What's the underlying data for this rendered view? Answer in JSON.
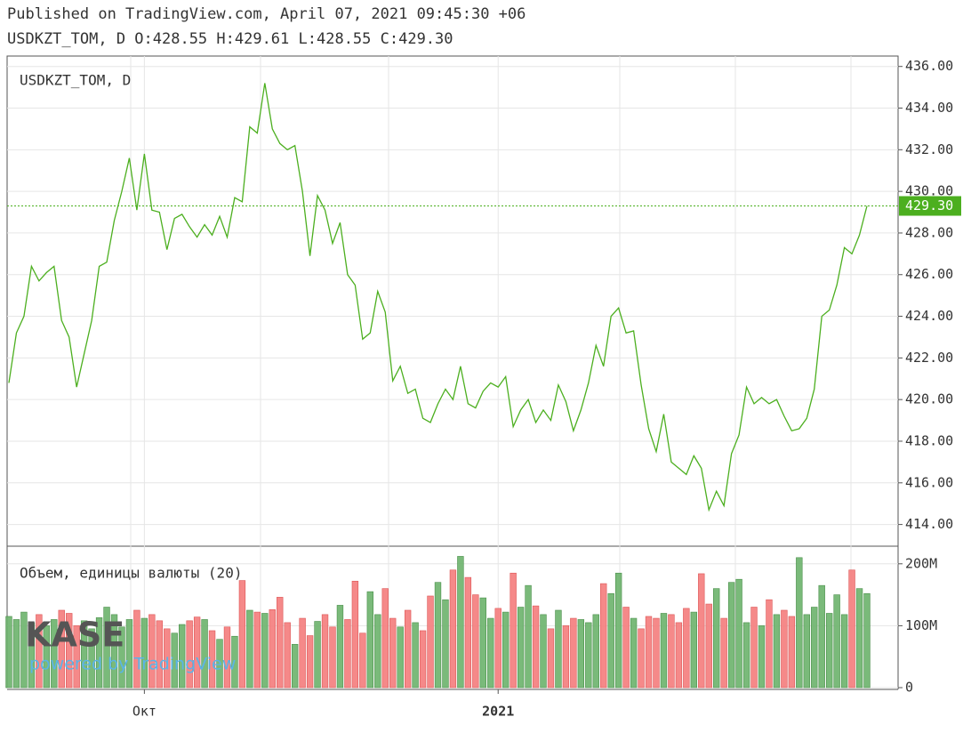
{
  "header": {
    "published": "Published on TradingView.com, April 07, 2021 09:45:30 +06",
    "ohlc": "USDKZT_TOM, D O:428.55 H:429.61 L:428.55 C:429.30"
  },
  "logo": {
    "name": "KASE",
    "tagline": "powered by TradingView"
  },
  "chart_data": {
    "type": "line",
    "categories": [
      null,
      null,
      null,
      null,
      null,
      null,
      null,
      null,
      null,
      null,
      null,
      null,
      null,
      null,
      null,
      null,
      null,
      null,
      "Окт",
      null,
      null,
      null,
      null,
      null,
      null,
      null,
      null,
      null,
      null,
      null,
      null,
      null,
      null,
      null,
      null,
      null,
      null,
      null,
      null,
      null,
      null,
      null,
      null,
      null,
      null,
      null,
      null,
      null,
      null,
      null,
      null,
      null,
      null,
      null,
      null,
      null,
      null,
      null,
      null,
      null,
      null,
      null,
      null,
      null,
      null,
      "2021",
      null,
      null,
      null,
      null,
      null,
      null,
      null,
      null,
      null,
      null,
      null,
      null,
      null,
      null,
      null,
      null,
      null,
      null,
      null,
      null,
      null,
      null,
      null,
      null,
      null,
      null,
      null,
      null,
      null,
      null,
      null,
      null,
      null,
      null,
      null,
      null,
      null,
      null,
      null,
      null,
      null,
      null,
      null,
      null,
      null,
      null,
      null,
      null,
      null
    ],
    "series": [
      {
        "name": "USDKZT_TOM, D",
        "color": "#4caf1f",
        "values": [
          420.8,
          423.2,
          424.0,
          426.4,
          425.7,
          426.1,
          426.4,
          423.8,
          423.0,
          420.6,
          422.2,
          423.8,
          426.4,
          426.6,
          428.6,
          430.0,
          431.6,
          429.1,
          431.8,
          429.1,
          429.0,
          427.2,
          428.7,
          428.9,
          428.3,
          427.8,
          428.4,
          427.9,
          428.8,
          427.8,
          429.7,
          429.5,
          433.1,
          432.8,
          435.2,
          433.0,
          432.3,
          432.0,
          432.2,
          430.0,
          426.9,
          429.8,
          429.1,
          427.5,
          428.5,
          426.0,
          425.5,
          422.9,
          423.2,
          425.2,
          424.2,
          420.9,
          421.6,
          420.3,
          420.5,
          419.1,
          418.9,
          419.8,
          420.5,
          420.0,
          421.6,
          419.8,
          419.6,
          420.4,
          420.8,
          420.6,
          421.1,
          418.7,
          419.5,
          420.0,
          418.9,
          419.5,
          419.0,
          420.7,
          419.9,
          418.5,
          419.5,
          420.8,
          422.6,
          421.6,
          424.0,
          424.4,
          423.2,
          423.3,
          420.7,
          418.6,
          417.5,
          419.3,
          417.0,
          416.7,
          416.4,
          417.3,
          416.7,
          414.7,
          415.6,
          414.9,
          417.4,
          418.3,
          420.6,
          419.8,
          420.1,
          419.8,
          420.0,
          419.2,
          418.5,
          418.6,
          419.1,
          420.5,
          424.0,
          424.3,
          425.5,
          427.3,
          427.0,
          427.9,
          429.3
        ],
        "value_labels": [
          null,
          null,
          null,
          null,
          null,
          null,
          null,
          null,
          null,
          null,
          null,
          null,
          null,
          null,
          null,
          null,
          null,
          null,
          null,
          null,
          null,
          null,
          null,
          null,
          null,
          null,
          null,
          null,
          null,
          null,
          null,
          null,
          null,
          null,
          null,
          null,
          null,
          null,
          null,
          null,
          null,
          null,
          null,
          null,
          null,
          null,
          null,
          null,
          null,
          null,
          null,
          null,
          null,
          null,
          null,
          null,
          null,
          null,
          null,
          null,
          null,
          null,
          null,
          null,
          null,
          null,
          null,
          null,
          null,
          null,
          null,
          null,
          null,
          null,
          null,
          null,
          null,
          null,
          null,
          null,
          null,
          null,
          null,
          null,
          null,
          null,
          null,
          null,
          null,
          null,
          null,
          null,
          null,
          null,
          null,
          null,
          null,
          null,
          null,
          null,
          null,
          null,
          null,
          null,
          null,
          null,
          null,
          null,
          null,
          null,
          null,
          null,
          null,
          null,
          "429.30"
        ]
      },
      {
        "name": "Объем, единицы валюты (20)",
        "type": "bar",
        "axis": "y2",
        "up_color": "#6bb36b",
        "down_color": "#f47c7c",
        "values": [
          115000000,
          110000000,
          122000000,
          105000000,
          118000000,
          100000000,
          110000000,
          125000000,
          120000000,
          100000000,
          108000000,
          95000000,
          113000000,
          130000000,
          118000000,
          98000000,
          110000000,
          125000000,
          112000000,
          118000000,
          108000000,
          95000000,
          88000000,
          102000000,
          108000000,
          114000000,
          110000000,
          92000000,
          78000000,
          98000000,
          83000000,
          173000000,
          125000000,
          122000000,
          120000000,
          126000000,
          146000000,
          105000000,
          70000000,
          112000000,
          84000000,
          107000000,
          118000000,
          98000000,
          133000000,
          110000000,
          172000000,
          88000000,
          155000000,
          118000000,
          160000000,
          112000000,
          98000000,
          125000000,
          105000000,
          92000000,
          148000000,
          170000000,
          142000000,
          190000000,
          212000000,
          178000000,
          150000000,
          145000000,
          112000000,
          128000000,
          122000000,
          185000000,
          130000000,
          165000000,
          132000000,
          118000000,
          95000000,
          125000000,
          100000000,
          112000000,
          110000000,
          105000000,
          118000000,
          168000000,
          152000000,
          185000000,
          130000000,
          112000000,
          95000000,
          115000000,
          112000000,
          120000000,
          118000000,
          105000000,
          128000000,
          122000000,
          184000000,
          135000000,
          160000000,
          112000000,
          170000000,
          175000000,
          105000000,
          130000000,
          100000000,
          142000000,
          118000000,
          125000000,
          115000000,
          210000000,
          118000000,
          130000000,
          165000000,
          120000000,
          150000000,
          118000000,
          190000000,
          160000000,
          152000000
        ]
      }
    ],
    "ylim": [
      413.0,
      436.5
    ],
    "yticks": [
      {
        "value": 414,
        "label": "414.00"
      },
      {
        "value": 416,
        "label": "416.00"
      },
      {
        "value": 418,
        "label": "418.00"
      },
      {
        "value": 420,
        "label": "420.00"
      },
      {
        "value": 422,
        "label": "422.00"
      },
      {
        "value": 424,
        "label": "424.00"
      },
      {
        "value": 426,
        "label": "426.00"
      },
      {
        "value": 428,
        "label": "428.00"
      },
      {
        "value": 430,
        "label": "430.00"
      },
      {
        "value": 432,
        "label": "432.00"
      },
      {
        "value": 434,
        "label": "434.00"
      },
      {
        "value": 436,
        "label": "436.00"
      }
    ],
    "y2lim": [
      0,
      227000000
    ],
    "y2ticks": [
      0,
      {
        "value": 100000000,
        "label": "100M"
      },
      {
        "value": 200000000,
        "label": "200M"
      }
    ],
    "grid": true
  }
}
